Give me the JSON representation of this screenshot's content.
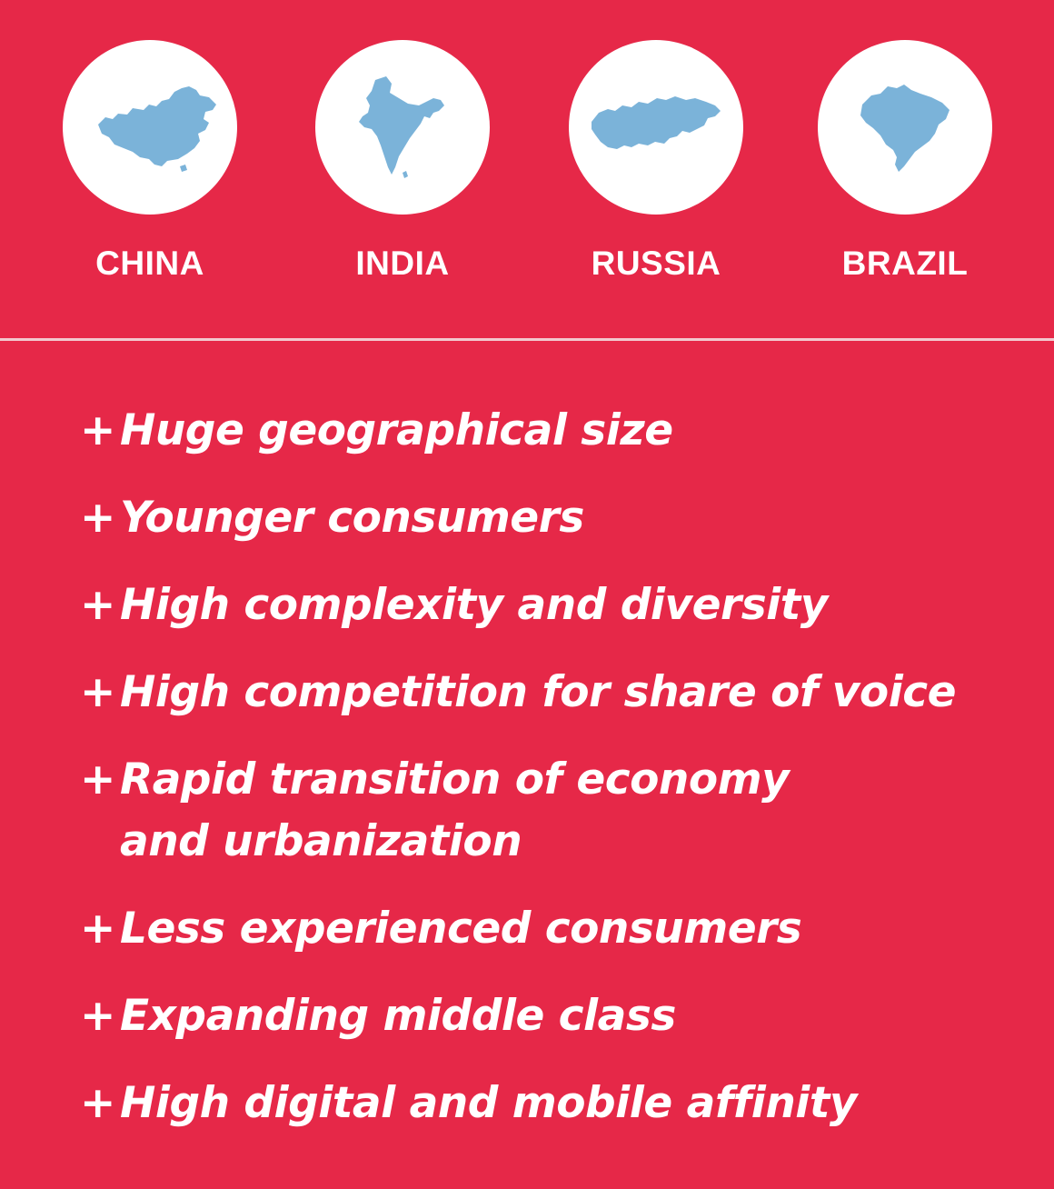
{
  "colors": {
    "background": "#e62848",
    "circle": "#ffffff",
    "map": "#7bb3d9",
    "text": "#ffffff",
    "divider": "#f2c9cf"
  },
  "countries": [
    {
      "name": "CHINA",
      "icon": "china-map-icon"
    },
    {
      "name": "INDIA",
      "icon": "india-map-icon"
    },
    {
      "name": "RUSSIA",
      "icon": "russia-map-icon"
    },
    {
      "name": "BRAZIL",
      "icon": "brazil-map-icon"
    }
  ],
  "bullet_symbol": "+",
  "traits": [
    "Huge geographical size",
    "Younger consumers",
    "High complexity and diversity",
    "High competition for share of voice",
    "Rapid transition of economy",
    "and urbanization",
    "Less experienced consumers",
    "Expanding middle class",
    "High digital and mobile affinity"
  ]
}
